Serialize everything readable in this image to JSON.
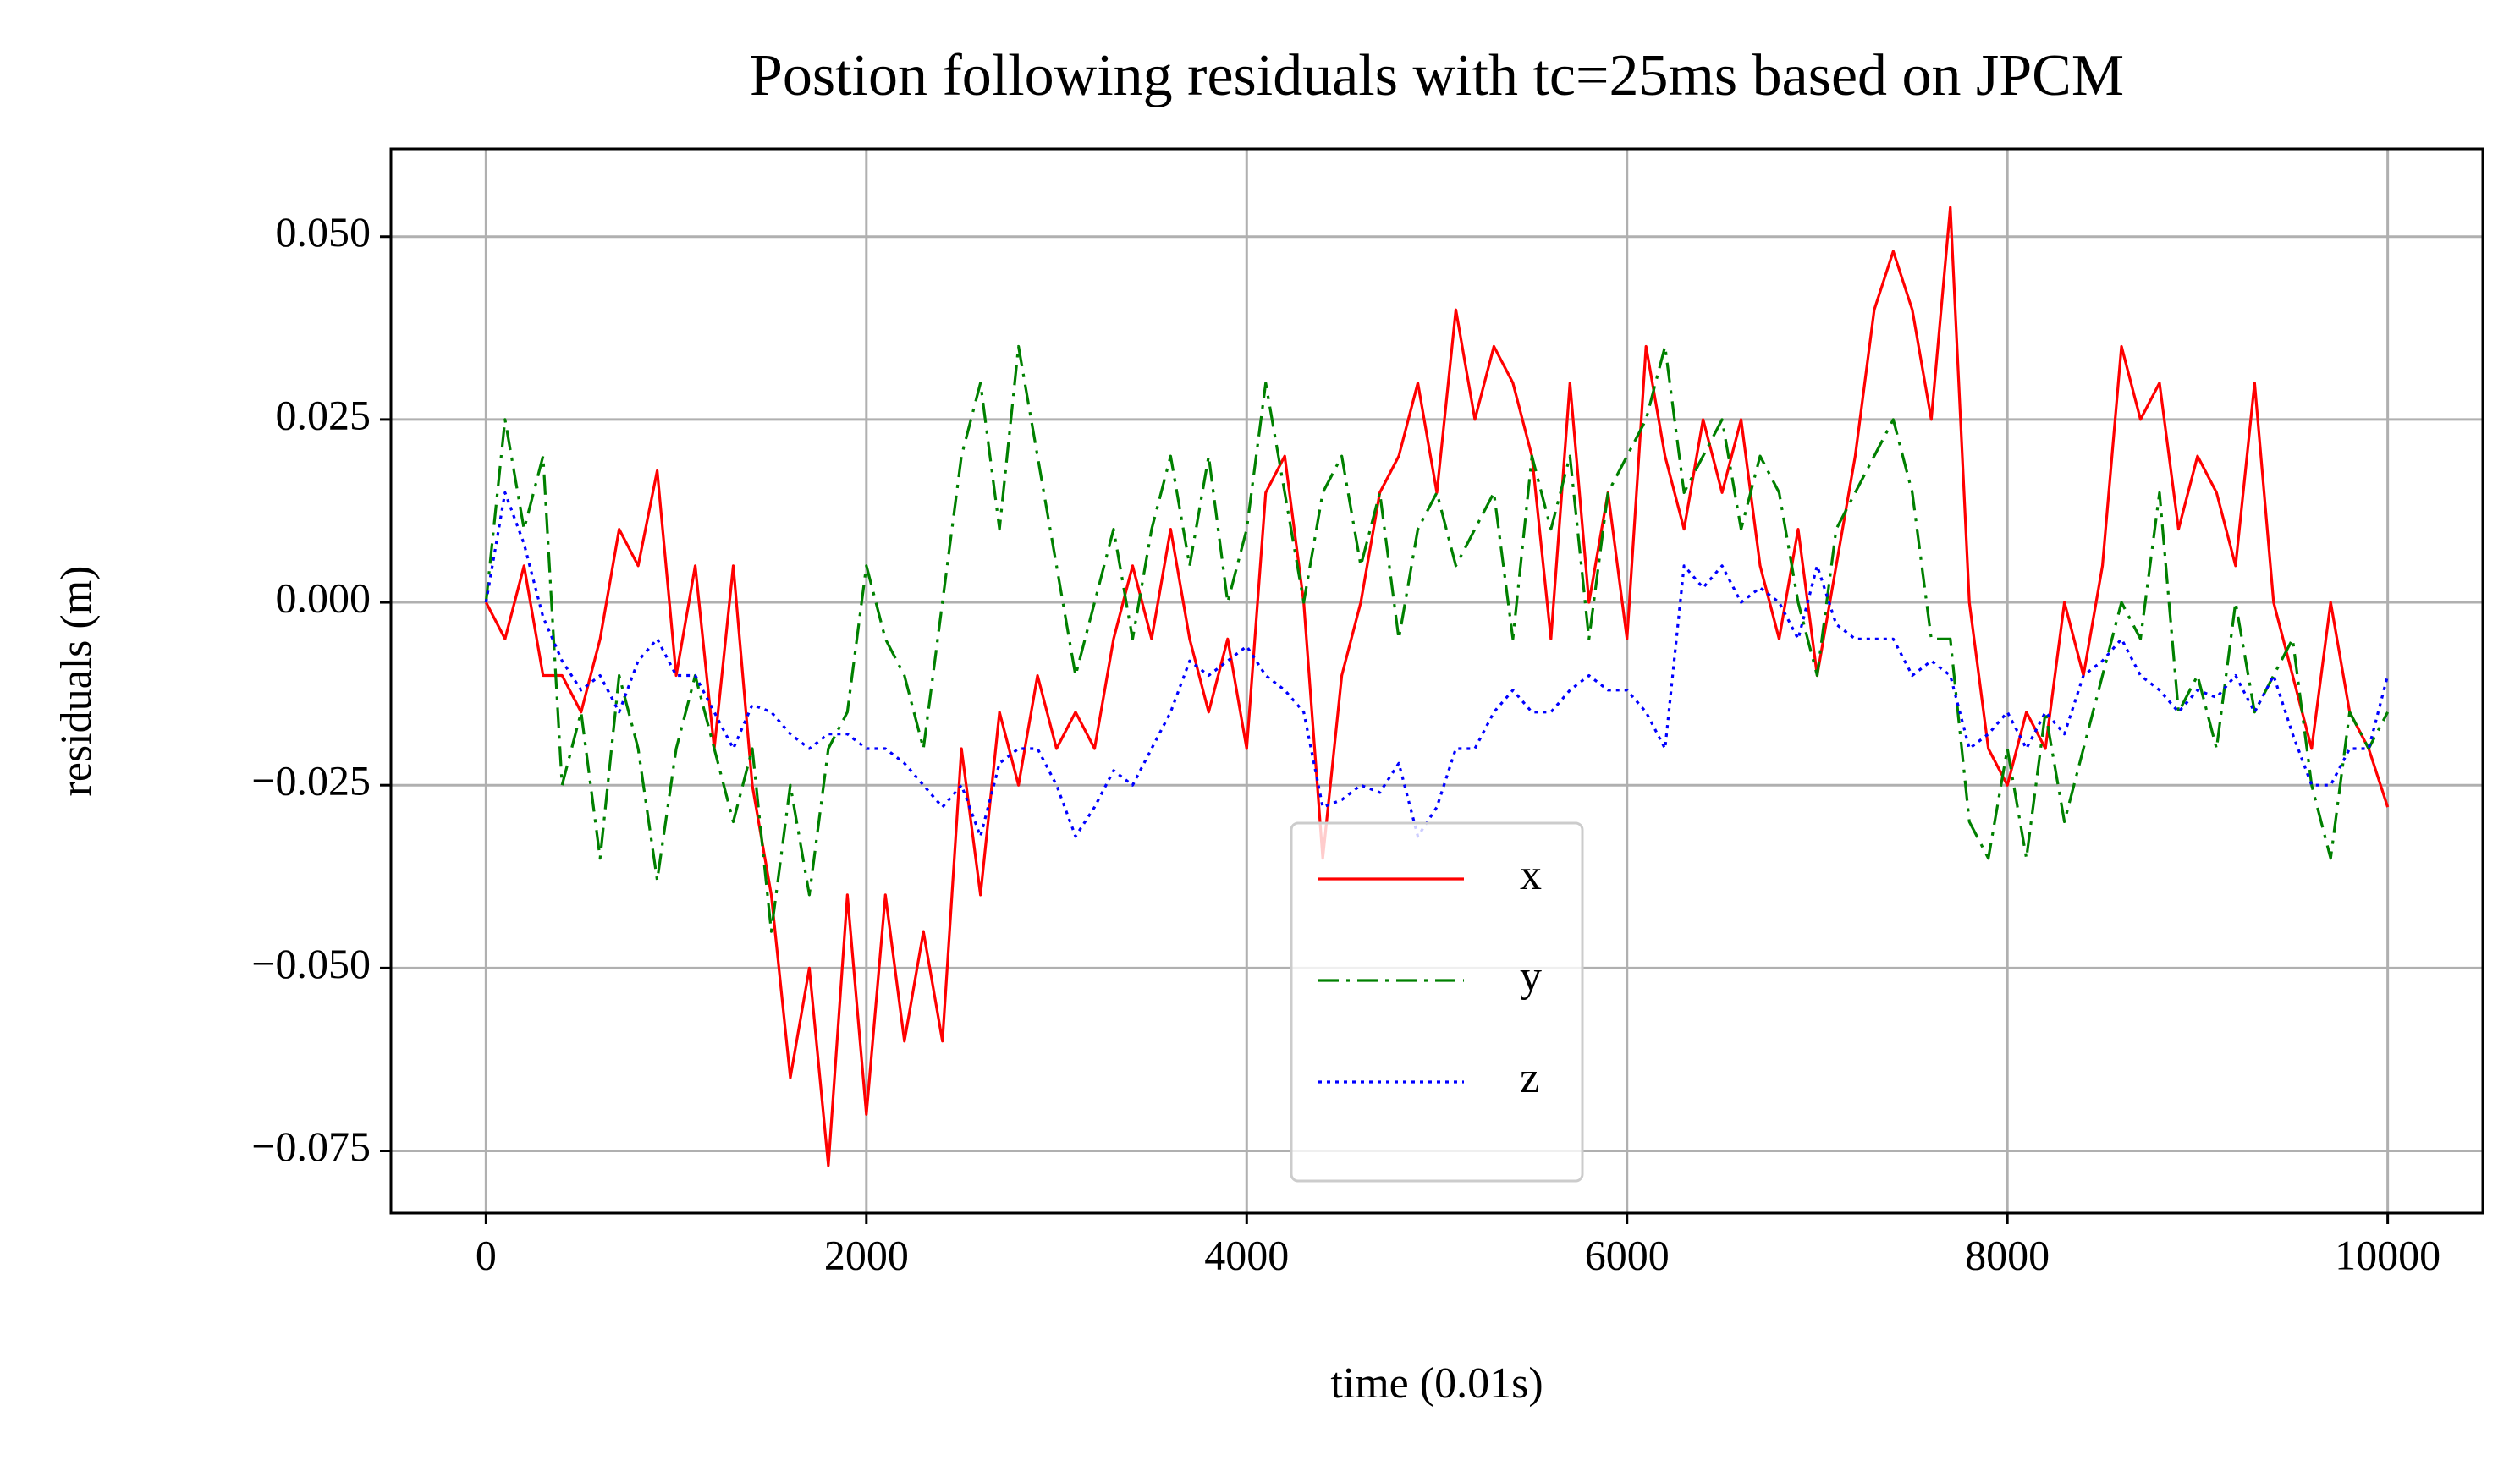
{
  "chart_data": {
    "type": "line",
    "title": "Postion following residuals with tc=25ms based on JPCM",
    "x_label": "time (0.01s)",
    "y_label": "residuals (m)",
    "x": [
      0,
      100,
      200,
      300,
      400,
      500,
      600,
      700,
      800,
      900,
      1000,
      1100,
      1200,
      1300,
      1400,
      1500,
      1600,
      1700,
      1800,
      1900,
      2000,
      2100,
      2200,
      2300,
      2400,
      2500,
      2600,
      2700,
      2800,
      2900,
      3000,
      3100,
      3200,
      3300,
      3400,
      3500,
      3600,
      3700,
      3800,
      3900,
      4000,
      4100,
      4200,
      4300,
      4400,
      4500,
      4600,
      4700,
      4800,
      4900,
      5000,
      5100,
      5200,
      5300,
      5400,
      5500,
      5600,
      5700,
      5800,
      5900,
      6000,
      6100,
      6200,
      6300,
      6400,
      6500,
      6600,
      6700,
      6800,
      6900,
      7000,
      7100,
      7200,
      7300,
      7400,
      7500,
      7600,
      7700,
      7800,
      7900,
      8000,
      8100,
      8200,
      8300,
      8400,
      8500,
      8600,
      8700,
      8800,
      8900,
      9000,
      9100,
      9200,
      9300,
      9400,
      9500,
      9600,
      9700,
      9800,
      9900,
      10000
    ],
    "series": [
      {
        "name": "x",
        "color": "#ff0000",
        "linestyle": "solid",
        "values": [
          0,
          -0.005,
          0.005,
          -0.01,
          -0.01,
          -0.015,
          -0.005,
          0.01,
          0.005,
          0.018,
          -0.01,
          0.005,
          -0.02,
          0.005,
          -0.025,
          -0.04,
          -0.065,
          -0.05,
          -0.077,
          -0.04,
          -0.07,
          -0.04,
          -0.06,
          -0.045,
          -0.06,
          -0.02,
          -0.04,
          -0.015,
          -0.025,
          -0.01,
          -0.02,
          -0.015,
          -0.02,
          -0.005,
          0.005,
          -0.005,
          0.01,
          -0.005,
          -0.015,
          -0.005,
          -0.02,
          0.015,
          0.02,
          0,
          -0.035,
          -0.01,
          0,
          0.015,
          0.02,
          0.03,
          0.015,
          0.04,
          0.025,
          0.035,
          0.03,
          0.02,
          -0.005,
          0.03,
          0,
          0.015,
          -0.005,
          0.035,
          0.02,
          0.01,
          0.025,
          0.015,
          0.025,
          0.005,
          -0.005,
          0.01,
          -0.01,
          0.005,
          0.02,
          0.04,
          0.048,
          0.04,
          0.025,
          0.054,
          0,
          -0.02,
          -0.025,
          -0.015,
          -0.02,
          0,
          -0.01,
          0.005,
          0.035,
          0.025,
          0.03,
          0.01,
          0.02,
          0.015,
          0.005,
          0.03,
          0,
          -0.01,
          -0.02,
          0,
          -0.015,
          -0.02,
          -0.028
        ]
      },
      {
        "name": "y",
        "color": "#008000",
        "linestyle": "dashdot",
        "values": [
          0,
          0.025,
          0.01,
          0.02,
          -0.025,
          -0.015,
          -0.035,
          -0.01,
          -0.02,
          -0.038,
          -0.02,
          -0.01,
          -0.02,
          -0.03,
          -0.02,
          -0.045,
          -0.025,
          -0.04,
          -0.02,
          -0.015,
          0.005,
          -0.005,
          -0.01,
          -0.02,
          0,
          0.02,
          0.03,
          0.01,
          0.035,
          0.02,
          0.005,
          -0.01,
          0,
          0.01,
          -0.005,
          0.01,
          0.02,
          0.005,
          0.02,
          0,
          0.01,
          0.03,
          0.015,
          0,
          0.015,
          0.02,
          0.005,
          0.015,
          -0.005,
          0.01,
          0.015,
          0.005,
          0.01,
          0.015,
          -0.005,
          0.02,
          0.01,
          0.02,
          -0.005,
          0.015,
          0.02,
          0.025,
          0.035,
          0.015,
          0.02,
          0.025,
          0.01,
          0.02,
          0.015,
          0,
          -0.01,
          0.01,
          0.015,
          0.02,
          0.025,
          0.015,
          -0.005,
          -0.005,
          -0.03,
          -0.035,
          -0.02,
          -0.035,
          -0.015,
          -0.03,
          -0.02,
          -0.01,
          0,
          -0.005,
          0.015,
          -0.015,
          -0.01,
          -0.02,
          0,
          -0.015,
          -0.01,
          -0.005,
          -0.025,
          -0.035,
          -0.015,
          -0.02,
          -0.015
        ]
      },
      {
        "name": "z",
        "color": "#0000ff",
        "linestyle": "dotted",
        "values": [
          0,
          0.015,
          0.008,
          -0.002,
          -0.008,
          -0.012,
          -0.01,
          -0.015,
          -0.008,
          -0.005,
          -0.01,
          -0.01,
          -0.015,
          -0.02,
          -0.014,
          -0.015,
          -0.018,
          -0.02,
          -0.018,
          -0.018,
          -0.02,
          -0.02,
          -0.022,
          -0.025,
          -0.028,
          -0.025,
          -0.032,
          -0.022,
          -0.02,
          -0.02,
          -0.025,
          -0.032,
          -0.028,
          -0.023,
          -0.025,
          -0.02,
          -0.015,
          -0.008,
          -0.01,
          -0.008,
          -0.006,
          -0.01,
          -0.012,
          -0.015,
          -0.028,
          -0.027,
          -0.025,
          -0.026,
          -0.022,
          -0.032,
          -0.028,
          -0.02,
          -0.02,
          -0.015,
          -0.012,
          -0.015,
          -0.015,
          -0.012,
          -0.01,
          -0.012,
          -0.012,
          -0.015,
          -0.02,
          0.005,
          0.002,
          0.005,
          0,
          0.002,
          0,
          -0.005,
          0.005,
          -0.003,
          -0.005,
          -0.005,
          -0.005,
          -0.01,
          -0.008,
          -0.01,
          -0.02,
          -0.018,
          -0.015,
          -0.02,
          -0.015,
          -0.018,
          -0.01,
          -0.008,
          -0.005,
          -0.01,
          -0.012,
          -0.015,
          -0.012,
          -0.013,
          -0.01,
          -0.015,
          -0.01,
          -0.018,
          -0.025,
          -0.025,
          -0.02,
          -0.02,
          -0.01
        ]
      }
    ],
    "xlim": [
      -500,
      10500
    ],
    "ylim": [
      -0.0835,
      0.062
    ],
    "xticks": [
      0,
      2000,
      4000,
      6000,
      8000,
      10000
    ],
    "yticks": [
      {
        "value": -0.075,
        "label": "−0.075"
      },
      {
        "value": -0.05,
        "label": "−0.050"
      },
      {
        "value": -0.025,
        "label": "−0.025"
      },
      {
        "value": 0,
        "label": "0.000"
      },
      {
        "value": 0.025,
        "label": "0.025"
      },
      {
        "value": 0.05,
        "label": "0.050"
      }
    ],
    "grid": true,
    "legend": "lower center"
  }
}
